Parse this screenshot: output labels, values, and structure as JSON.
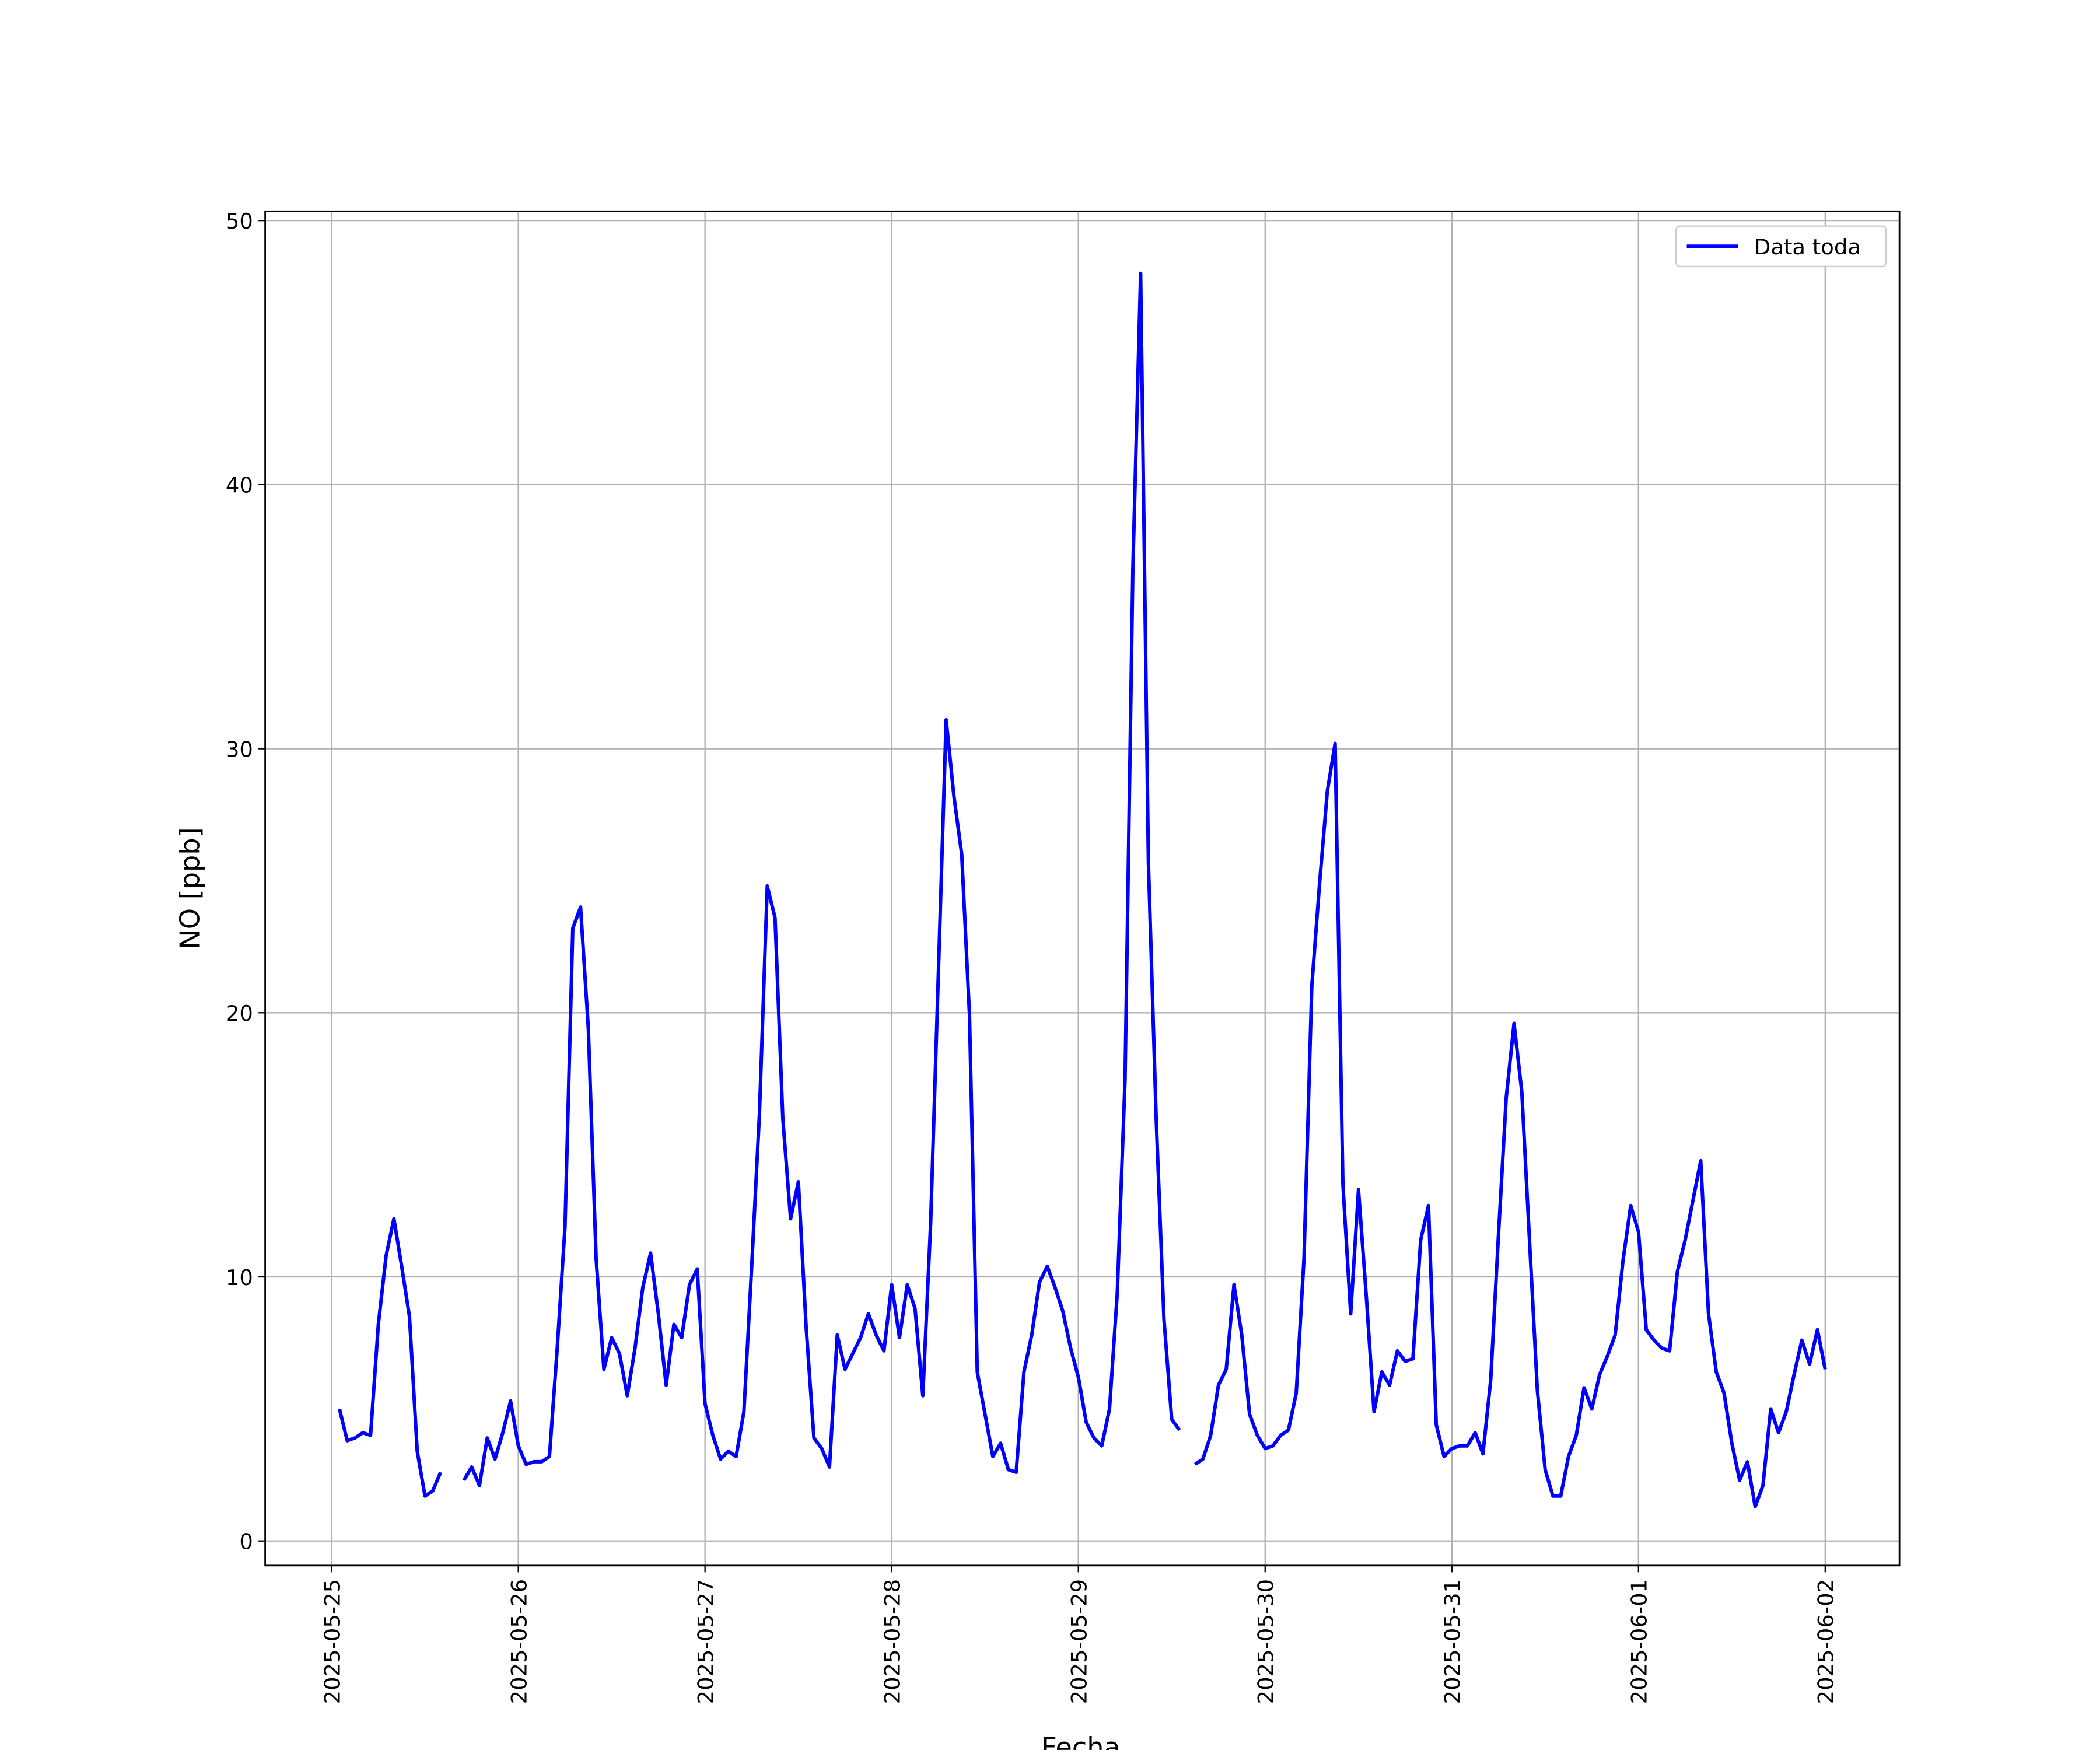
{
  "chart_data": {
    "type": "line",
    "x_label": "Fecha",
    "y_label": "NO [ppb]",
    "x": [
      "2025-05-25 01:00",
      "2025-05-25 02:00",
      "2025-05-25 03:00",
      "2025-05-25 04:00",
      "2025-05-25 05:00",
      "2025-05-25 06:00",
      "2025-05-25 07:00",
      "2025-05-25 08:00",
      "2025-05-25 09:00",
      "2025-05-25 10:00",
      "2025-05-25 11:00",
      "2025-05-25 12:00",
      "2025-05-25 13:00",
      "2025-05-25 14:00",
      "2025-05-25 15:00",
      "2025-05-25 16:00",
      "2025-05-25 17:00",
      "2025-05-25 18:00",
      "2025-05-25 19:00",
      "2025-05-25 20:00",
      "2025-05-25 21:00",
      "2025-05-25 22:00",
      "2025-05-25 23:00",
      "2025-05-26 00:00",
      "2025-05-26 01:00",
      "2025-05-26 02:00",
      "2025-05-26 03:00",
      "2025-05-26 04:00",
      "2025-05-26 05:00",
      "2025-05-26 06:00",
      "2025-05-26 07:00",
      "2025-05-26 08:00",
      "2025-05-26 09:00",
      "2025-05-26 10:00",
      "2025-05-26 11:00",
      "2025-05-26 12:00",
      "2025-05-26 13:00",
      "2025-05-26 14:00",
      "2025-05-26 15:00",
      "2025-05-26 16:00",
      "2025-05-26 17:00",
      "2025-05-26 18:00",
      "2025-05-26 19:00",
      "2025-05-26 20:00",
      "2025-05-26 21:00",
      "2025-05-26 22:00",
      "2025-05-26 23:00",
      "2025-05-27 00:00",
      "2025-05-27 01:00",
      "2025-05-27 02:00",
      "2025-05-27 03:00",
      "2025-05-27 04:00",
      "2025-05-27 05:00",
      "2025-05-27 06:00",
      "2025-05-27 07:00",
      "2025-05-27 08:00",
      "2025-05-27 09:00",
      "2025-05-27 10:00",
      "2025-05-27 11:00",
      "2025-05-27 12:00",
      "2025-05-27 13:00",
      "2025-05-27 14:00",
      "2025-05-27 15:00",
      "2025-05-27 16:00",
      "2025-05-27 17:00",
      "2025-05-27 18:00",
      "2025-05-27 19:00",
      "2025-05-27 20:00",
      "2025-05-27 21:00",
      "2025-05-27 22:00",
      "2025-05-27 23:00",
      "2025-05-28 00:00",
      "2025-05-28 01:00",
      "2025-05-28 02:00",
      "2025-05-28 03:00",
      "2025-05-28 04:00",
      "2025-05-28 05:00",
      "2025-05-28 06:00",
      "2025-05-28 07:00",
      "2025-05-28 08:00",
      "2025-05-28 09:00",
      "2025-05-28 10:00",
      "2025-05-28 11:00",
      "2025-05-28 12:00",
      "2025-05-28 13:00",
      "2025-05-28 14:00",
      "2025-05-28 15:00",
      "2025-05-28 16:00",
      "2025-05-28 17:00",
      "2025-05-28 18:00",
      "2025-05-28 19:00",
      "2025-05-28 20:00",
      "2025-05-28 21:00",
      "2025-05-28 22:00",
      "2025-05-28 23:00",
      "2025-05-29 00:00",
      "2025-05-29 01:00",
      "2025-05-29 02:00",
      "2025-05-29 03:00",
      "2025-05-29 04:00",
      "2025-05-29 05:00",
      "2025-05-29 06:00",
      "2025-05-29 07:00",
      "2025-05-29 08:00",
      "2025-05-29 09:00",
      "2025-05-29 10:00",
      "2025-05-29 11:00",
      "2025-05-29 12:00",
      "2025-05-29 13:00",
      "2025-05-29 14:00",
      "2025-05-29 15:00",
      "2025-05-29 16:00",
      "2025-05-29 17:00",
      "2025-05-29 18:00",
      "2025-05-29 19:00",
      "2025-05-29 20:00",
      "2025-05-29 21:00",
      "2025-05-29 22:00",
      "2025-05-29 23:00",
      "2025-05-30 00:00",
      "2025-05-30 01:00",
      "2025-05-30 02:00",
      "2025-05-30 03:00",
      "2025-05-30 04:00",
      "2025-05-30 05:00",
      "2025-05-30 06:00",
      "2025-05-30 07:00",
      "2025-05-30 08:00",
      "2025-05-30 09:00",
      "2025-05-30 10:00",
      "2025-05-30 11:00",
      "2025-05-30 12:00",
      "2025-05-30 13:00",
      "2025-05-30 14:00",
      "2025-05-30 15:00",
      "2025-05-30 16:00",
      "2025-05-30 17:00",
      "2025-05-30 18:00",
      "2025-05-30 19:00",
      "2025-05-30 20:00",
      "2025-05-30 21:00",
      "2025-05-30 22:00",
      "2025-05-30 23:00",
      "2025-05-31 00:00",
      "2025-05-31 01:00",
      "2025-05-31 02:00",
      "2025-05-31 03:00",
      "2025-05-31 04:00",
      "2025-05-31 05:00",
      "2025-05-31 06:00",
      "2025-05-31 07:00",
      "2025-05-31 08:00",
      "2025-05-31 09:00",
      "2025-05-31 10:00",
      "2025-05-31 11:00",
      "2025-05-31 12:00",
      "2025-05-31 13:00",
      "2025-05-31 14:00",
      "2025-05-31 15:00",
      "2025-05-31 16:00",
      "2025-05-31 17:00",
      "2025-05-31 18:00",
      "2025-05-31 19:00",
      "2025-05-31 20:00",
      "2025-05-31 21:00",
      "2025-05-31 22:00",
      "2025-05-31 23:00",
      "2025-06-01 00:00",
      "2025-06-01 01:00",
      "2025-06-01 02:00",
      "2025-06-01 03:00",
      "2025-06-01 04:00",
      "2025-06-01 05:00",
      "2025-06-01 06:00",
      "2025-06-01 07:00",
      "2025-06-01 08:00",
      "2025-06-01 09:00",
      "2025-06-01 10:00",
      "2025-06-01 11:00",
      "2025-06-01 12:00",
      "2025-06-01 13:00",
      "2025-06-01 14:00",
      "2025-06-01 15:00",
      "2025-06-01 16:00",
      "2025-06-01 17:00",
      "2025-06-01 18:00",
      "2025-06-01 19:00",
      "2025-06-01 20:00",
      "2025-06-01 21:00",
      "2025-06-01 22:00",
      "2025-06-01 23:00",
      "2025-06-02 00:00"
    ],
    "series": [
      {
        "name": "Data toda",
        "color": "#0000ff",
        "values": [
          5.0,
          3.8,
          3.9,
          4.1,
          4.0,
          8.2,
          10.8,
          12.2,
          10.4,
          8.5,
          3.4,
          1.7,
          1.9,
          2.6,
          null,
          null,
          2.3,
          2.8,
          2.1,
          3.9,
          3.1,
          4.1,
          5.3,
          3.6,
          2.9,
          3.0,
          3.0,
          3.2,
          7.3,
          11.9,
          23.2,
          24.0,
          19.4,
          10.7,
          6.5,
          7.7,
          7.1,
          5.5,
          7.3,
          9.6,
          10.9,
          8.6,
          5.9,
          8.2,
          7.7,
          9.7,
          10.3,
          5.2,
          4.0,
          3.1,
          3.4,
          3.2,
          4.9,
          10.4,
          16.2,
          24.8,
          23.6,
          16.0,
          12.2,
          13.6,
          8.1,
          3.9,
          3.5,
          2.8,
          7.8,
          6.5,
          7.1,
          7.7,
          8.6,
          7.8,
          7.2,
          9.7,
          7.7,
          9.7,
          8.8,
          5.5,
          12.0,
          21.5,
          31.1,
          28.2,
          26.0,
          19.9,
          6.4,
          4.8,
          3.2,
          3.7,
          2.7,
          2.6,
          6.4,
          7.8,
          9.8,
          10.4,
          9.6,
          8.7,
          7.3,
          6.2,
          4.5,
          3.9,
          3.6,
          5.0,
          9.4,
          17.5,
          36.8,
          48.0,
          25.7,
          16.0,
          8.4,
          4.6,
          4.2,
          null,
          2.9,
          3.1,
          4.0,
          5.9,
          6.5,
          9.7,
          7.8,
          4.8,
          4.0,
          3.5,
          3.6,
          4.0,
          4.2,
          5.6,
          10.7,
          21.0,
          24.9,
          28.4,
          30.2,
          13.5,
          8.6,
          13.3,
          9.3,
          4.9,
          6.4,
          5.9,
          7.2,
          6.8,
          6.9,
          11.4,
          12.7,
          4.4,
          3.2,
          3.5,
          3.6,
          3.6,
          4.1,
          3.3,
          6.1,
          11.6,
          16.8,
          19.6,
          17.0,
          11.3,
          5.7,
          2.7,
          1.7,
          1.7,
          3.2,
          4.0,
          5.8,
          5.0,
          6.3,
          7.0,
          7.8,
          10.6,
          12.7,
          11.7,
          8.0,
          7.6,
          7.3,
          7.2,
          10.2,
          11.4,
          12.9,
          14.4,
          8.6,
          6.4,
          5.6,
          3.7,
          2.3,
          3.0,
          1.3,
          2.1,
          5.0,
          4.1,
          4.9,
          6.3,
          7.6,
          6.7,
          8.0,
          6.5
        ]
      }
    ],
    "xlim": [
      "2025-05-24 15:27",
      "2025-06-02 09:33"
    ],
    "xticks": [
      "2025-05-25",
      "2025-05-26",
      "2025-05-27",
      "2025-05-28",
      "2025-05-29",
      "2025-05-30",
      "2025-05-31",
      "2025-06-01",
      "2025-06-02"
    ],
    "ylim": [
      -0.93,
      50.35
    ],
    "yticks": [
      0,
      10,
      20,
      30,
      40,
      50
    ],
    "grid": true,
    "legend": "upper right"
  }
}
